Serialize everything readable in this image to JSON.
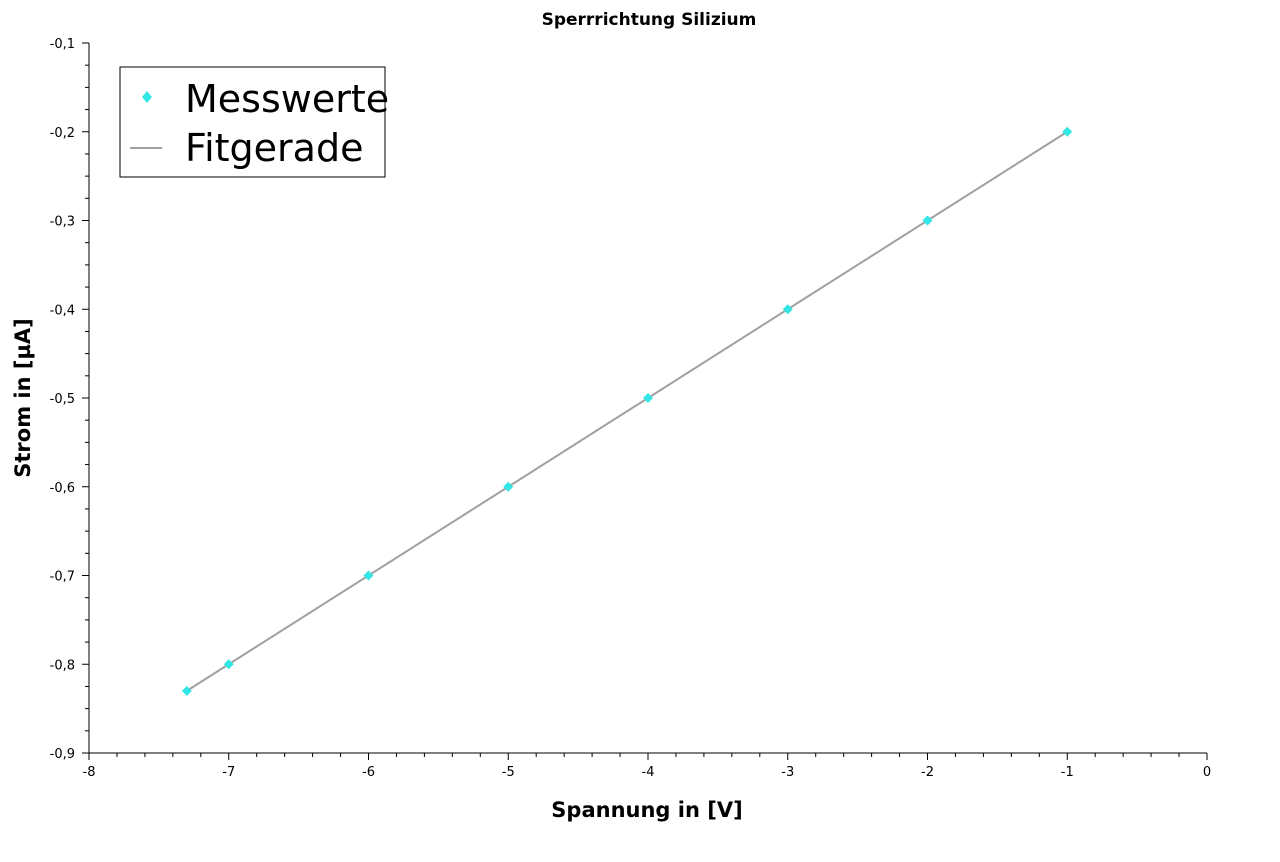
{
  "chart_data": {
    "type": "scatter",
    "title": "Sperrrichtung Silizium",
    "xlabel": "Spannung in [V]",
    "ylabel": "Strom in [µA]",
    "xlim": [
      -8,
      0
    ],
    "ylim": [
      -0.9,
      -0.1
    ],
    "x_ticks": [
      -8,
      -7,
      -6,
      -5,
      -4,
      -3,
      -2,
      -1,
      0
    ],
    "x_tick_labels": [
      "-8",
      "-7",
      "-6",
      "-5",
      "-4",
      "-3",
      "-2",
      "-1",
      "0"
    ],
    "y_ticks": [
      -0.9,
      -0.8,
      -0.7,
      -0.6,
      -0.5,
      -0.4,
      -0.3,
      -0.2,
      -0.1
    ],
    "y_tick_labels": [
      "-0,9",
      "-0,8",
      "-0,7",
      "-0,6",
      "-0,5",
      "-0,4",
      "-0,3",
      "-0,2",
      "-0,1"
    ],
    "grid": false,
    "legend_position": "top-left",
    "series": [
      {
        "name": "Messwerte",
        "kind": "scatter",
        "marker": "diamond",
        "color": "#33e6e6",
        "x": [
          -7.3,
          -7,
          -6,
          -5,
          -4,
          -3,
          -2,
          -1
        ],
        "y": [
          -0.83,
          -0.8,
          -0.7,
          -0.6,
          -0.5,
          -0.4,
          -0.3,
          -0.2
        ]
      },
      {
        "name": "Fitgerade",
        "kind": "line",
        "color": "#a0a0a0",
        "x": [
          -7.3,
          -1
        ],
        "y": [
          -0.83,
          -0.2
        ]
      }
    ]
  }
}
